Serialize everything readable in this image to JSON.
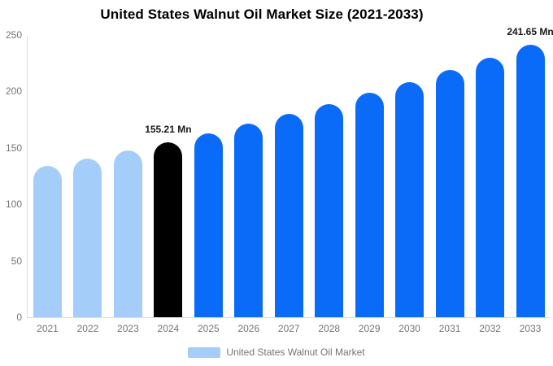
{
  "title": "United States Walnut Oil Market Size (2021-2033)",
  "legend": {
    "label": "United States Walnut Oil Market",
    "swatch_color": "#a4cdf9"
  },
  "colors": {
    "past_bar": "#a4cdf9",
    "current_bar": "#000000",
    "forecast_bar": "#0a6bf8",
    "axis_line": "#dcdcdc",
    "tick_text": "#757575",
    "annotation_text": "#1a1a1a",
    "title_text": "#000000"
  },
  "chart_data": {
    "type": "bar",
    "title": "United States Walnut Oil Market Size (2021-2033)",
    "xlabel": "",
    "ylabel": "",
    "unit": "Mn",
    "categories": [
      "2021",
      "2022",
      "2023",
      "2024",
      "2025",
      "2026",
      "2027",
      "2028",
      "2029",
      "2030",
      "2031",
      "2032",
      "2033"
    ],
    "values": [
      133.92,
      140.67,
      147.76,
      155.21,
      163.04,
      171.26,
      179.89,
      188.96,
      198.49,
      208.49,
      219.0,
      230.05,
      241.65
    ],
    "bar_roles": [
      "past",
      "past",
      "past",
      "current",
      "forecast",
      "forecast",
      "forecast",
      "forecast",
      "forecast",
      "forecast",
      "forecast",
      "forecast",
      "forecast"
    ],
    "ylim": [
      0,
      250
    ],
    "yticks": [
      0,
      50,
      100,
      150,
      200,
      250
    ],
    "grid": false,
    "legend_position": "bottom",
    "annotations": [
      {
        "category": "2024",
        "text": "155.21 Mn"
      },
      {
        "category": "2033",
        "text": "241.65 Mn"
      }
    ]
  }
}
